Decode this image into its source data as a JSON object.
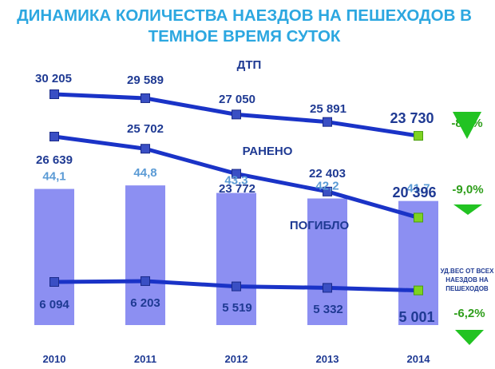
{
  "chart_data": {
    "type": "bar",
    "title": "ДИНАМИКА КОЛИЧЕСТВА НАЕЗДОВ НА ПЕШЕХОДОВ В ТЕМНОЕ ВРЕМЯ СУТОК",
    "title_lines": [
      "ДИНАМИКА КОЛИЧЕСТВА НАЕЗДОВ НА ПЕШЕХОДОВ В",
      "ТЕМНОЕ ВРЕМЯ СУТОК"
    ],
    "categories": [
      "2010",
      "2011",
      "2012",
      "2013",
      "2014"
    ],
    "bars": {
      "name": "УД.ВЕС ОТ ВСЕХ НАЕЗДОВ НА ПЕШЕХОДОВ",
      "name_lines": [
        "УД.ВЕС ОТ ВСЕХ",
        "НАЕЗДОВ НА",
        "ПЕШЕХОДОВ"
      ],
      "values": [
        44.1,
        44.8,
        43.3,
        42.2,
        41.7
      ],
      "labels": [
        "44,1",
        "44,8",
        "43,3",
        "42,2",
        "41,7"
      ],
      "color": "#8c8ff2"
    },
    "series": [
      {
        "name": "ДТП",
        "values": [
          30205,
          29589,
          27050,
          25891,
          23730
        ],
        "labels": [
          "30 205",
          "29 589",
          "27 050",
          "25 891",
          "23 730"
        ],
        "change": "-8,3%"
      },
      {
        "name": "РАНЕНО",
        "values": [
          26639,
          25702,
          23772,
          22403,
          20396
        ],
        "labels": [
          "26 639",
          "25 702",
          "23 772",
          "22 403",
          "20 396"
        ],
        "change": "-9,0%"
      },
      {
        "name": "ПОГИБЛО",
        "values": [
          6094,
          6203,
          5519,
          5332,
          5001
        ],
        "labels": [
          "6 094",
          "6 203",
          "5 519",
          "5 332",
          "5 001"
        ],
        "change": "-6,2%"
      }
    ],
    "colors": {
      "title": "#2ca7e0",
      "line": "#1a33c7",
      "marker": "#3a4fc4",
      "last_marker": "#7ed321",
      "text": "#1f3a93",
      "bar_label": "#5b9bd5",
      "change": "#2e9e1a",
      "arrow": "#22c322"
    },
    "grid": false,
    "legend": "none"
  }
}
